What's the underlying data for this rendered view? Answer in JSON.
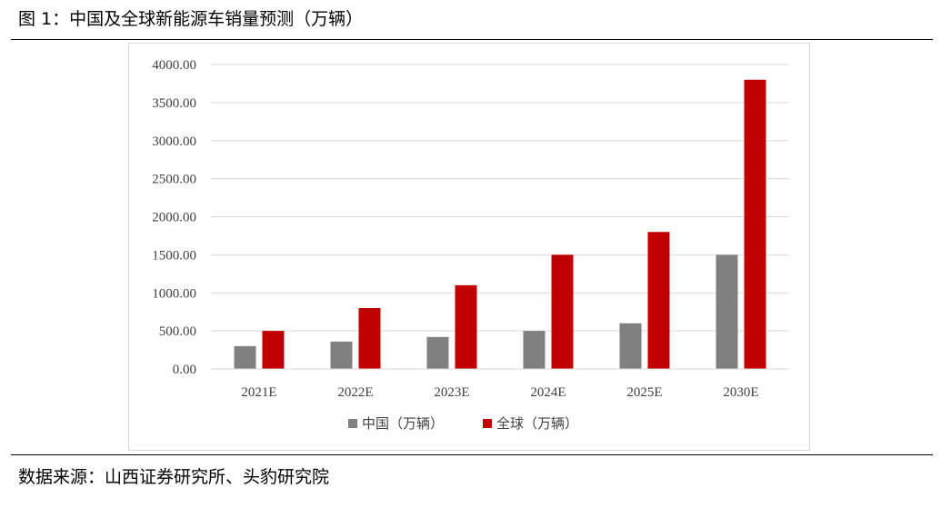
{
  "header": {
    "title": "图 1：中国及全球新能源车销量预测（万辆）"
  },
  "footer": {
    "source": "数据来源：山西证券研究所、头豹研究院"
  },
  "chart_data": {
    "type": "bar",
    "categories": [
      "2021E",
      "2022E",
      "2023E",
      "2024E",
      "2025E",
      "2030E"
    ],
    "series": [
      {
        "name": "中国（万辆）",
        "color": "#808080",
        "values": [
          300,
          360,
          420,
          500,
          600,
          1500
        ]
      },
      {
        "name": "全球（万辆）",
        "color": "#c00000",
        "values": [
          500,
          800,
          1100,
          1500,
          1800,
          3800
        ]
      }
    ],
    "y_ticks": [
      "0.00",
      "500.00",
      "1000.00",
      "1500.00",
      "2000.00",
      "2500.00",
      "3000.00",
      "3500.00",
      "4000.00"
    ],
    "ylim": [
      0,
      4000
    ],
    "grid": true,
    "legend_position": "bottom"
  }
}
